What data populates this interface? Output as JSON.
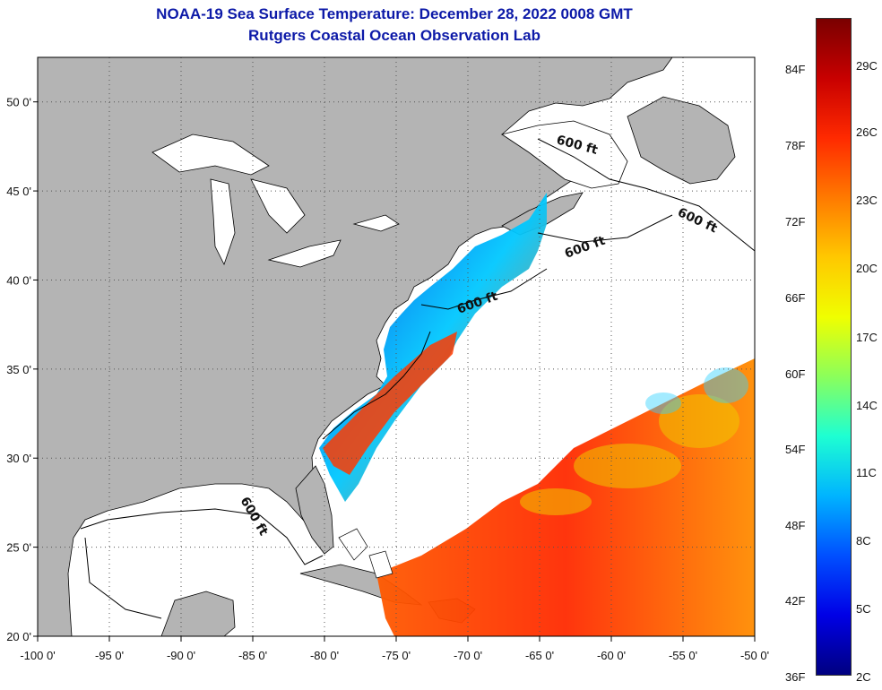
{
  "title_line1": "NOAA-19 Sea Surface Temperature:  December 28, 2022 0008 GMT",
  "title_line2": "Rutgers Coastal Ocean Observation Lab",
  "map": {
    "lon_range": [
      -100,
      -50
    ],
    "lat_range": [
      20,
      52.5
    ],
    "lon_ticks": [
      {
        "value": -100,
        "label": "-100 0'"
      },
      {
        "value": -95,
        "label": "-95 0'"
      },
      {
        "value": -90,
        "label": "-90 0'"
      },
      {
        "value": -85,
        "label": "-85 0'"
      },
      {
        "value": -80,
        "label": "-80 0'"
      },
      {
        "value": -75,
        "label": "-75 0'"
      },
      {
        "value": -70,
        "label": "-70 0'"
      },
      {
        "value": -65,
        "label": "-65 0'"
      },
      {
        "value": -60,
        "label": "-60 0'"
      },
      {
        "value": -55,
        "label": "-55 0'"
      },
      {
        "value": -50,
        "label": "-50 0'"
      }
    ],
    "lat_ticks": [
      {
        "value": 50,
        "label": "50 0'"
      },
      {
        "value": 45,
        "label": "45 0'"
      },
      {
        "value": 40,
        "label": "40 0'"
      },
      {
        "value": 35,
        "label": "35 0'"
      },
      {
        "value": 30,
        "label": "30 0'"
      },
      {
        "value": 25,
        "label": "25 0'"
      },
      {
        "value": 20,
        "label": "20 0'"
      }
    ],
    "contour_label": "600 ft",
    "land_color": "#b4b4b4",
    "water_color": "#ffffff"
  },
  "colorbar": {
    "fahrenheit_labels": [
      "84F",
      "78F",
      "72F",
      "66F",
      "60F",
      "54F",
      "48F",
      "42F",
      "36F"
    ],
    "celsius_labels": [
      "29C",
      "26C",
      "23C",
      "20C",
      "17C",
      "14C",
      "11C",
      "8C",
      "5C",
      "2C"
    ],
    "colors": [
      "#7a0000",
      "#c80000",
      "#ff2a00",
      "#ff7a00",
      "#ffc800",
      "#f0ff00",
      "#8cff5a",
      "#1effd2",
      "#00b4ff",
      "#0050ff",
      "#0000e6",
      "#000080"
    ]
  }
}
